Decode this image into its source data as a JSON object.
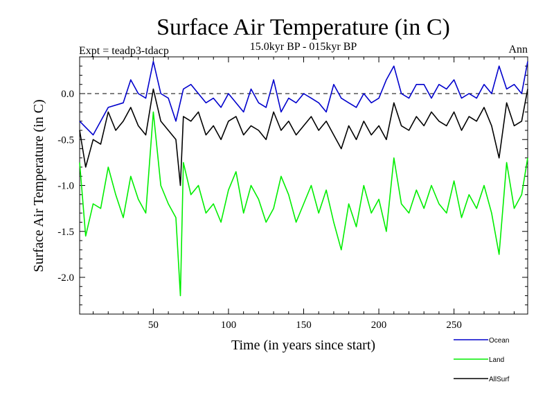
{
  "chart_data": {
    "type": "line",
    "title": "Surface Air Temperature (in C)",
    "subtitle": "15.0kyr BP - 015kyr BP",
    "left_label": "Expt = teadp3-tdacp",
    "right_label": "Ann",
    "xlabel": "Time (in years since start)",
    "ylabel": "Surface Air Temperature (in C)",
    "xlim": [
      1,
      299
    ],
    "ylim": [
      -2.4,
      0.4
    ],
    "xticks": [
      50,
      100,
      150,
      200,
      250
    ],
    "xtick_labels": [
      "50",
      "100",
      "150",
      "200",
      "250"
    ],
    "yticks": [
      0.0,
      -0.5,
      -1.0,
      -1.5,
      -2.0
    ],
    "ytick_labels": [
      "0.0",
      "-0.5",
      "-1.0",
      "-1.5",
      "-2.0"
    ],
    "reference_line": 0.0,
    "legend_position": "bottom-right, below plot",
    "series": [
      {
        "name": "Ocean",
        "color": "#0000cc",
        "x": [
          1,
          10,
          20,
          30,
          35,
          40,
          45,
          50,
          55,
          60,
          65,
          70,
          75,
          80,
          85,
          90,
          95,
          100,
          105,
          110,
          115,
          120,
          125,
          130,
          135,
          140,
          145,
          150,
          155,
          160,
          165,
          170,
          175,
          180,
          185,
          190,
          195,
          200,
          205,
          210,
          215,
          220,
          225,
          230,
          235,
          240,
          245,
          250,
          255,
          260,
          265,
          270,
          275,
          280,
          285,
          290,
          295,
          299
        ],
        "y": [
          -0.3,
          -0.45,
          -0.15,
          -0.1,
          0.15,
          0.0,
          -0.05,
          0.35,
          0.0,
          -0.05,
          -0.3,
          0.05,
          0.1,
          0.0,
          -0.1,
          -0.05,
          -0.15,
          0.0,
          -0.1,
          -0.2,
          0.05,
          -0.1,
          -0.15,
          0.15,
          -0.2,
          -0.05,
          -0.1,
          0.0,
          -0.05,
          -0.1,
          -0.2,
          0.1,
          -0.05,
          -0.1,
          -0.15,
          0.0,
          -0.1,
          -0.05,
          0.15,
          0.3,
          0.0,
          -0.05,
          0.1,
          0.1,
          -0.05,
          0.1,
          0.05,
          0.15,
          -0.05,
          0.0,
          -0.05,
          0.1,
          0.0,
          0.3,
          0.05,
          0.1,
          0.0,
          0.35
        ]
      },
      {
        "name": "Land",
        "color": "#00ee00",
        "x": [
          1,
          5,
          10,
          15,
          20,
          25,
          30,
          35,
          40,
          45,
          50,
          55,
          60,
          65,
          68,
          70,
          75,
          80,
          85,
          90,
          95,
          100,
          105,
          110,
          115,
          120,
          125,
          130,
          135,
          140,
          145,
          150,
          155,
          160,
          165,
          170,
          175,
          180,
          185,
          190,
          195,
          200,
          205,
          210,
          215,
          220,
          225,
          230,
          235,
          240,
          245,
          250,
          255,
          260,
          265,
          270,
          275,
          280,
          285,
          290,
          295,
          299
        ],
        "y": [
          -0.75,
          -1.55,
          -1.2,
          -1.25,
          -0.8,
          -1.1,
          -1.35,
          -0.9,
          -1.15,
          -1.3,
          -0.2,
          -1.0,
          -1.2,
          -1.35,
          -2.2,
          -0.75,
          -1.1,
          -1.0,
          -1.3,
          -1.2,
          -1.4,
          -1.05,
          -0.85,
          -1.3,
          -1.0,
          -1.15,
          -1.4,
          -1.25,
          -0.9,
          -1.1,
          -1.4,
          -1.2,
          -1.0,
          -1.3,
          -1.05,
          -1.4,
          -1.7,
          -1.2,
          -1.45,
          -1.0,
          -1.3,
          -1.15,
          -1.5,
          -0.7,
          -1.2,
          -1.3,
          -1.05,
          -1.25,
          -1.0,
          -1.2,
          -1.3,
          -0.95,
          -1.35,
          -1.1,
          -1.25,
          -1.0,
          -1.3,
          -1.75,
          -0.75,
          -1.25,
          -1.1,
          -0.7
        ]
      },
      {
        "name": "AllSurf",
        "color": "#000000",
        "x": [
          1,
          5,
          10,
          15,
          20,
          25,
          30,
          35,
          40,
          45,
          50,
          55,
          60,
          65,
          68,
          70,
          75,
          80,
          85,
          90,
          95,
          100,
          105,
          110,
          115,
          120,
          125,
          130,
          135,
          140,
          145,
          150,
          155,
          160,
          165,
          170,
          175,
          180,
          185,
          190,
          195,
          200,
          205,
          210,
          215,
          220,
          225,
          230,
          235,
          240,
          245,
          250,
          255,
          260,
          265,
          270,
          275,
          280,
          285,
          290,
          295,
          299
        ],
        "y": [
          -0.4,
          -0.8,
          -0.5,
          -0.55,
          -0.2,
          -0.4,
          -0.3,
          -0.15,
          -0.35,
          -0.45,
          0.05,
          -0.3,
          -0.4,
          -0.5,
          -1.0,
          -0.25,
          -0.3,
          -0.2,
          -0.45,
          -0.35,
          -0.5,
          -0.3,
          -0.25,
          -0.45,
          -0.35,
          -0.4,
          -0.5,
          -0.2,
          -0.4,
          -0.3,
          -0.45,
          -0.35,
          -0.25,
          -0.4,
          -0.3,
          -0.45,
          -0.6,
          -0.35,
          -0.5,
          -0.3,
          -0.45,
          -0.35,
          -0.5,
          -0.1,
          -0.35,
          -0.4,
          -0.25,
          -0.35,
          -0.2,
          -0.3,
          -0.35,
          -0.2,
          -0.4,
          -0.25,
          -0.3,
          -0.15,
          -0.35,
          -0.7,
          -0.1,
          -0.35,
          -0.3,
          0.05
        ]
      }
    ]
  }
}
